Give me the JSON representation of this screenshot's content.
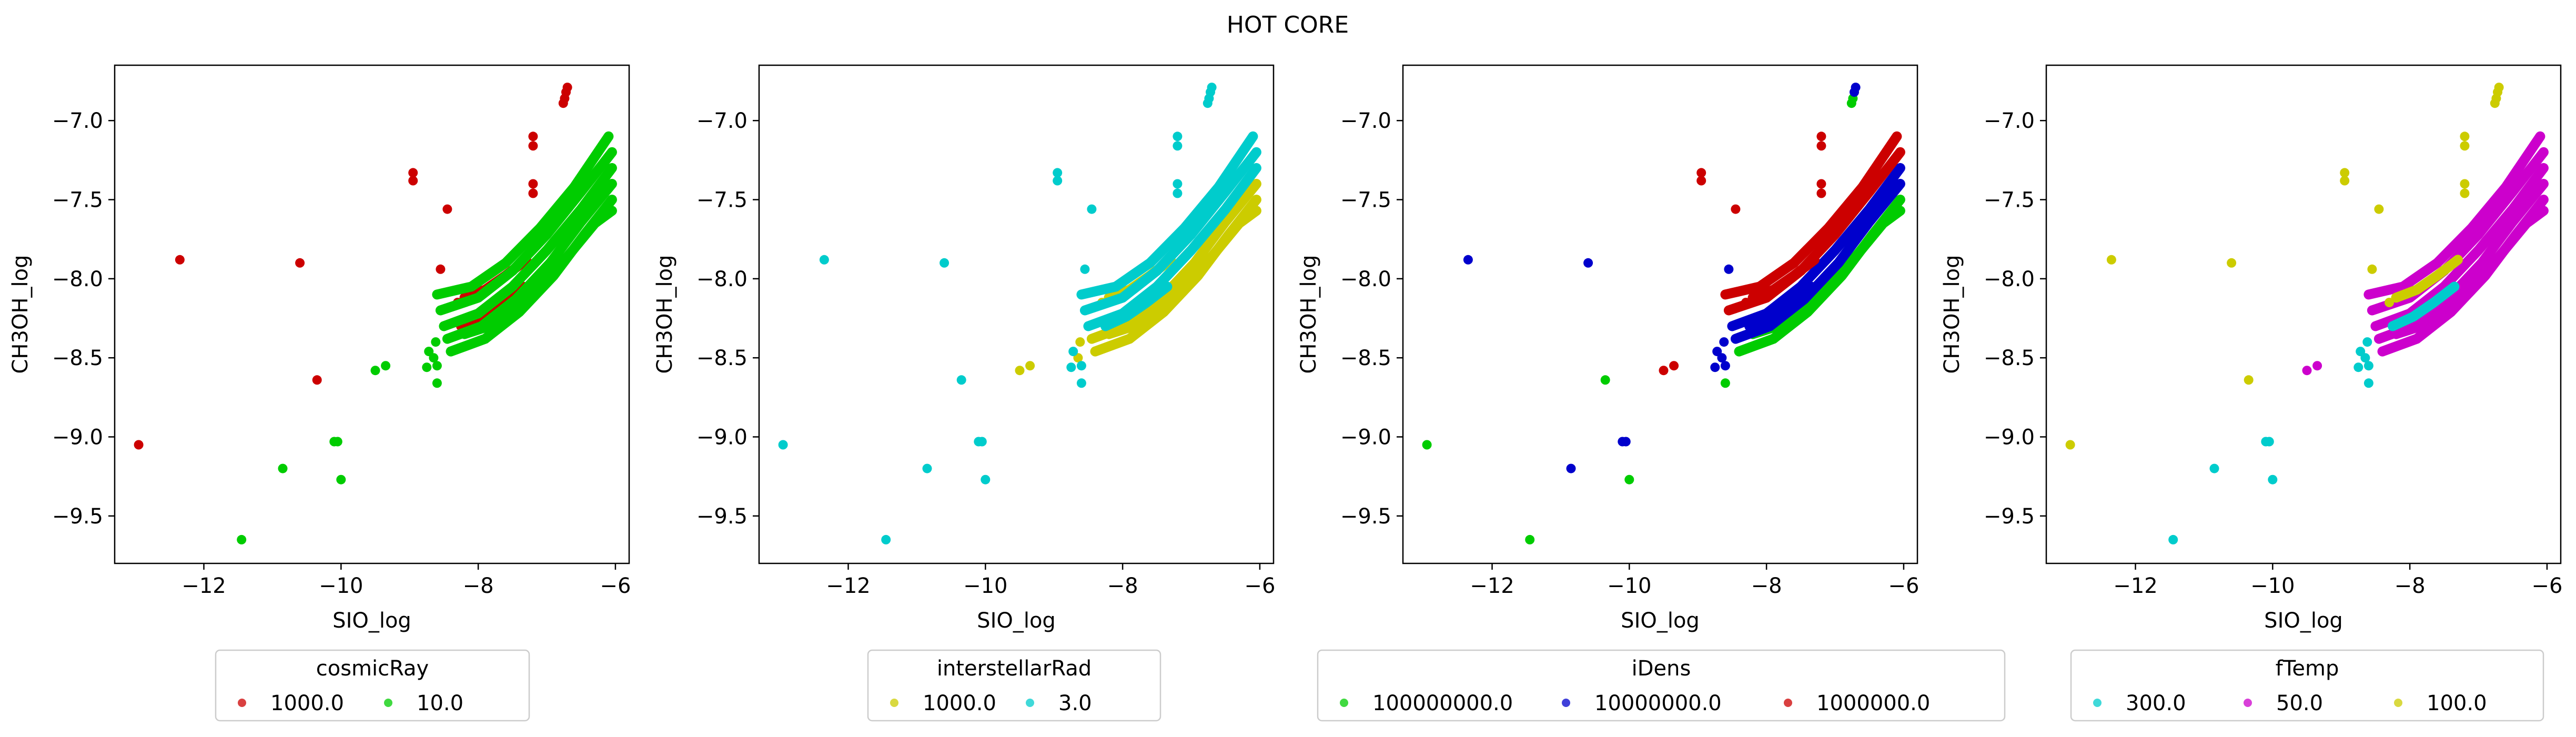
{
  "figure": {
    "title": "HOT CORE"
  },
  "chart_data": [
    {
      "type": "scatter",
      "xlabel": "SIO_log",
      "ylabel": "CH3OH_log",
      "xlim": [
        -13.3,
        -5.8
      ],
      "ylim": [
        -9.8,
        -6.65
      ],
      "xticks": [
        -12,
        -10,
        -8,
        -6
      ],
      "yticks": [
        -9.5,
        -9.0,
        -8.5,
        -8.0,
        -7.5,
        -7.0
      ],
      "grid": false,
      "legend": {
        "title": "cosmicRay",
        "placement": "below",
        "columns": 2
      },
      "series": [
        {
          "name": "1000.0",
          "color": "#cc0000"
        },
        {
          "name": "10.0",
          "color": "#00cc00"
        }
      ],
      "draw_order": [
        "1000.0",
        "10.0"
      ]
    },
    {
      "type": "scatter",
      "xlabel": "SIO_log",
      "ylabel": "CH3OH_log",
      "xlim": [
        -13.3,
        -5.8
      ],
      "ylim": [
        -9.8,
        -6.65
      ],
      "xticks": [
        -12,
        -10,
        -8,
        -6
      ],
      "yticks": [
        -9.5,
        -9.0,
        -8.5,
        -8.0,
        -7.5,
        -7.0
      ],
      "grid": false,
      "legend": {
        "title": "interstellarRad",
        "placement": "below",
        "columns": 2
      },
      "series": [
        {
          "name": "1000.0",
          "color": "#cccc00"
        },
        {
          "name": "3.0",
          "color": "#00cccc"
        }
      ],
      "draw_order": [
        "1000.0",
        "3.0"
      ]
    },
    {
      "type": "scatter",
      "xlabel": "SIO_log",
      "ylabel": "CH3OH_log",
      "xlim": [
        -13.3,
        -5.8
      ],
      "ylim": [
        -9.8,
        -6.65
      ],
      "xticks": [
        -12,
        -10,
        -8,
        -6
      ],
      "yticks": [
        -9.5,
        -9.0,
        -8.5,
        -8.0,
        -7.5,
        -7.0
      ],
      "grid": false,
      "legend": {
        "title": "iDens",
        "placement": "below",
        "columns": 3
      },
      "series": [
        {
          "name": "100000000.0",
          "color": "#00cc00"
        },
        {
          "name": "10000000.0",
          "color": "#0000cc"
        },
        {
          "name": "1000000.0",
          "color": "#cc0000"
        }
      ],
      "draw_order": [
        "100000000.0",
        "10000000.0",
        "1000000.0"
      ]
    },
    {
      "type": "scatter",
      "xlabel": "SIO_log",
      "ylabel": "CH3OH_log",
      "xlim": [
        -13.3,
        -5.8
      ],
      "ylim": [
        -9.8,
        -6.65
      ],
      "xticks": [
        -12,
        -10,
        -8,
        -6
      ],
      "yticks": [
        -9.5,
        -9.0,
        -8.5,
        -8.0,
        -7.5,
        -7.0
      ],
      "grid": false,
      "legend": {
        "title": "fTemp",
        "placement": "below",
        "columns": 3
      },
      "series": [
        {
          "name": "300.0",
          "color": "#00cccc"
        },
        {
          "name": "50.0",
          "color": "#cc00cc"
        },
        {
          "name": "100.0",
          "color": "#cccc00"
        }
      ],
      "draw_order": [
        "50.0",
        "300.0",
        "100.0"
      ]
    }
  ],
  "points": {
    "scatter": [
      {
        "x": -12.95,
        "y": -9.05,
        "g": [
          0,
          1,
          0,
          2
        ]
      },
      {
        "x": -12.35,
        "y": -7.88,
        "g": [
          0,
          1,
          1,
          2
        ]
      },
      {
        "x": -11.45,
        "y": -9.65,
        "g": [
          1,
          1,
          0,
          0
        ]
      },
      {
        "x": -10.85,
        "y": -9.2,
        "g": [
          1,
          1,
          1,
          0
        ]
      },
      {
        "x": -10.6,
        "y": -7.9,
        "g": [
          0,
          1,
          1,
          2
        ]
      },
      {
        "x": -10.35,
        "y": -8.64,
        "g": [
          0,
          1,
          0,
          2
        ]
      },
      {
        "x": -10.1,
        "y": -9.03,
        "g": [
          1,
          1,
          1,
          0
        ]
      },
      {
        "x": -10.05,
        "y": -9.03,
        "g": [
          1,
          1,
          1,
          0
        ]
      },
      {
        "x": -10.0,
        "y": -9.27,
        "g": [
          1,
          1,
          0,
          0
        ]
      },
      {
        "x": -9.5,
        "y": -8.58,
        "g": [
          1,
          0,
          2,
          1
        ]
      },
      {
        "x": -9.35,
        "y": -8.55,
        "g": [
          1,
          0,
          2,
          1
        ]
      },
      {
        "x": -8.95,
        "y": -7.33,
        "g": [
          0,
          1,
          2,
          2
        ]
      },
      {
        "x": -8.95,
        "y": -7.38,
        "g": [
          0,
          1,
          2,
          2
        ]
      },
      {
        "x": -8.45,
        "y": -7.56,
        "g": [
          0,
          1,
          2,
          2
        ]
      },
      {
        "x": -8.55,
        "y": -7.94,
        "g": [
          0,
          1,
          1,
          2
        ]
      },
      {
        "x": -8.6,
        "y": -8.66,
        "g": [
          1,
          1,
          0,
          0
        ]
      },
      {
        "x": -8.6,
        "y": -8.55,
        "g": [
          1,
          1,
          1,
          0
        ]
      },
      {
        "x": -8.65,
        "y": -8.5,
        "g": [
          1,
          0,
          1,
          0
        ]
      },
      {
        "x": -7.2,
        "y": -7.1,
        "g": [
          0,
          1,
          2,
          2
        ]
      },
      {
        "x": -7.2,
        "y": -7.16,
        "g": [
          0,
          1,
          2,
          2
        ]
      },
      {
        "x": -7.2,
        "y": -7.4,
        "g": [
          0,
          1,
          2,
          2
        ]
      },
      {
        "x": -7.2,
        "y": -7.46,
        "g": [
          0,
          1,
          2,
          2
        ]
      },
      {
        "x": -6.7,
        "y": -6.79,
        "g": [
          0,
          1,
          1,
          2
        ]
      },
      {
        "x": -6.72,
        "y": -6.82,
        "g": [
          0,
          1,
          1,
          2
        ]
      },
      {
        "x": -6.74,
        "y": -6.86,
        "g": [
          0,
          1,
          0,
          2
        ]
      },
      {
        "x": -6.76,
        "y": -6.89,
        "g": [
          0,
          1,
          0,
          2
        ]
      },
      {
        "x": -8.75,
        "y": -8.56,
        "g": [
          1,
          1,
          1,
          0
        ]
      },
      {
        "x": -8.72,
        "y": -8.46,
        "g": [
          1,
          1,
          1,
          0
        ]
      },
      {
        "x": -8.62,
        "y": -8.4,
        "g": [
          1,
          0,
          1,
          0
        ]
      },
      {
        "x": -8.3,
        "y": -8.15,
        "g": [
          0,
          0,
          2,
          2
        ]
      }
    ],
    "tracks": [
      {
        "x": [
          -8.6,
          -8.1,
          -7.6,
          -7.1,
          -6.6,
          -6.1
        ],
        "y": [
          -8.1,
          -8.05,
          -7.9,
          -7.68,
          -7.42,
          -7.1
        ],
        "g": [
          1,
          1,
          2,
          1
        ]
      },
      {
        "x": [
          -8.55,
          -8.0,
          -7.5,
          -7.0,
          -6.5,
          -6.05
        ],
        "y": [
          -8.2,
          -8.12,
          -7.95,
          -7.72,
          -7.45,
          -7.2
        ],
        "g": [
          1,
          1,
          2,
          1
        ]
      },
      {
        "x": [
          -8.5,
          -8.0,
          -7.5,
          -7.0,
          -6.5,
          -6.05
        ],
        "y": [
          -8.3,
          -8.22,
          -8.05,
          -7.82,
          -7.56,
          -7.3
        ],
        "g": [
          1,
          1,
          1,
          1
        ]
      },
      {
        "x": [
          -8.45,
          -7.95,
          -7.45,
          -6.95,
          -6.5,
          -6.05
        ],
        "y": [
          -8.38,
          -8.3,
          -8.13,
          -7.9,
          -7.64,
          -7.4
        ],
        "g": [
          1,
          0,
          1,
          1
        ]
      },
      {
        "x": [
          -8.4,
          -7.9,
          -7.4,
          -6.9,
          -6.45,
          -6.05
        ],
        "y": [
          -8.46,
          -8.38,
          -8.21,
          -7.98,
          -7.72,
          -7.5
        ],
        "g": [
          1,
          0,
          0,
          1
        ]
      },
      {
        "x": [
          -8.2,
          -7.7,
          -7.2,
          -6.7,
          -6.3,
          -6.05
        ],
        "y": [
          -8.35,
          -8.28,
          -8.1,
          -7.86,
          -7.65,
          -7.57
        ],
        "g": [
          1,
          0,
          0,
          1
        ]
      },
      {
        "x": [
          -8.2,
          -7.9,
          -7.6,
          -7.3
        ],
        "y": [
          -8.12,
          -8.07,
          -7.98,
          -7.88
        ],
        "g": [
          0,
          0,
          2,
          2
        ]
      },
      {
        "x": [
          -8.25,
          -7.95,
          -7.65,
          -7.35
        ],
        "y": [
          -8.3,
          -8.24,
          -8.15,
          -8.05
        ],
        "g": [
          0,
          1,
          1,
          0
        ]
      }
    ]
  }
}
